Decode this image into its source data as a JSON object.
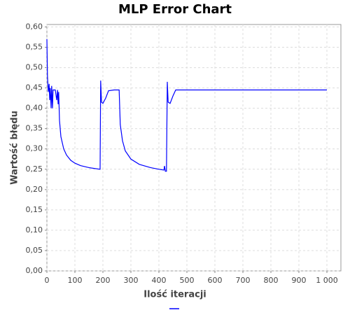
{
  "chart_data": {
    "type": "line",
    "title": "MLP Error Chart",
    "x_label": "Ilość iteracji",
    "y_label": "Wartość błędu",
    "x": [
      0,
      2,
      5,
      8,
      10,
      12,
      15,
      17,
      20,
      22,
      25,
      30,
      35,
      38,
      40,
      42,
      45,
      50,
      60,
      70,
      85,
      100,
      120,
      150,
      190,
      192,
      195,
      200,
      210,
      220,
      240,
      258,
      262,
      270,
      280,
      300,
      330,
      370,
      400,
      418,
      420,
      423,
      427,
      430,
      433,
      440,
      450,
      460,
      500,
      1000
    ],
    "series": [
      {
        "color": "#0000ff",
        "values": [
          0.57,
          0.48,
          0.44,
          0.46,
          0.42,
          0.45,
          0.4,
          0.455,
          0.4,
          0.445,
          0.445,
          0.445,
          0.42,
          0.445,
          0.41,
          0.44,
          0.37,
          0.33,
          0.3,
          0.285,
          0.272,
          0.265,
          0.259,
          0.254,
          0.25,
          0.468,
          0.415,
          0.412,
          0.425,
          0.443,
          0.445,
          0.445,
          0.36,
          0.32,
          0.295,
          0.275,
          0.262,
          0.254,
          0.25,
          0.248,
          0.258,
          0.245,
          0.245,
          0.465,
          0.415,
          0.412,
          0.43,
          0.445,
          0.445,
          0.445
        ]
      }
    ],
    "xlim": [
      0,
      1050
    ],
    "xticks": [
      0,
      100,
      200,
      300,
      400,
      500,
      600,
      700,
      800,
      900,
      {
        "value": 1000,
        "label": "1 000"
      }
    ],
    "ylim": [
      0,
      0.606
    ],
    "yticks": [
      {
        "value": 0,
        "label": "0,00"
      },
      {
        "value": 0.05,
        "label": "0,05"
      },
      {
        "value": 0.1,
        "label": "0,10"
      },
      {
        "value": 0.15,
        "label": "0,15"
      },
      {
        "value": 0.2,
        "label": "0,20"
      },
      {
        "value": 0.25,
        "label": "0,25"
      },
      {
        "value": 0.3,
        "label": "0,30"
      },
      {
        "value": 0.35,
        "label": "0,35"
      },
      {
        "value": 0.4,
        "label": "0,40"
      },
      {
        "value": 0.45,
        "label": "0,45"
      },
      {
        "value": 0.5,
        "label": "0,50"
      },
      {
        "value": 0.55,
        "label": "0,55"
      },
      {
        "value": 0.6,
        "label": "0,60"
      }
    ],
    "grid": true
  }
}
